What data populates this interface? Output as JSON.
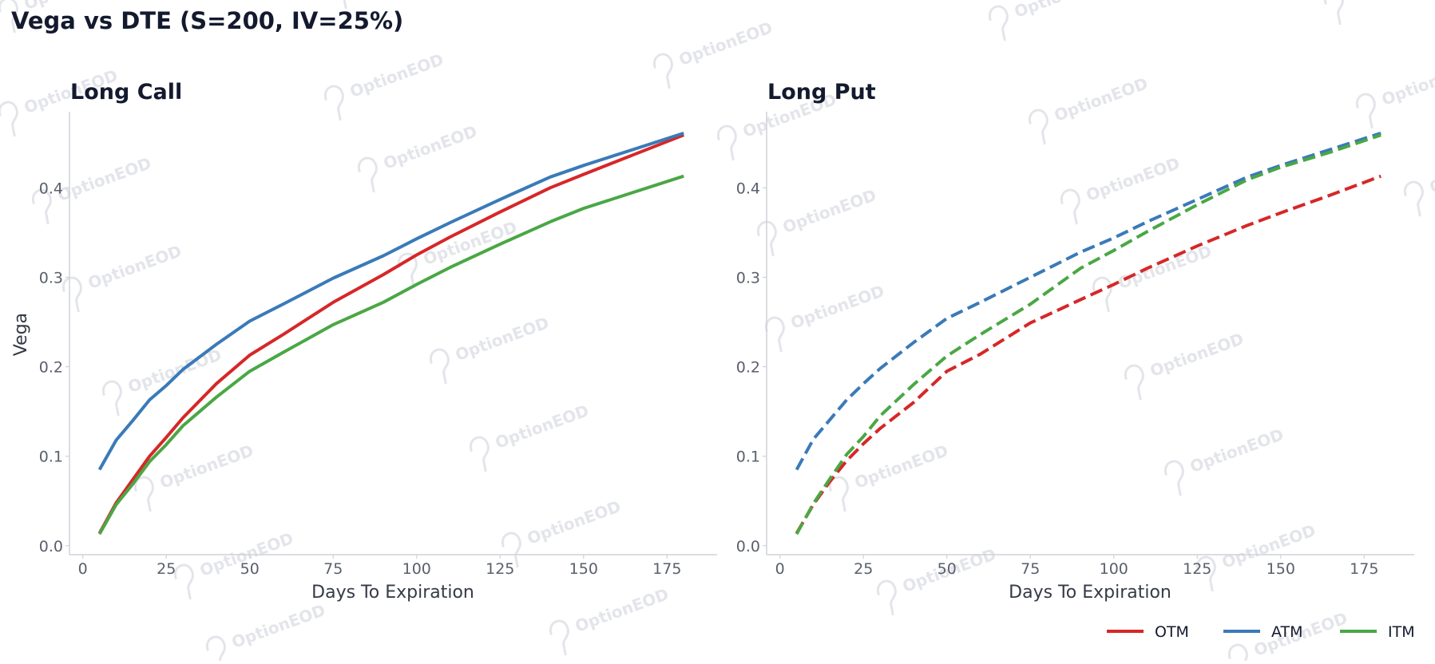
{
  "title": "Vega vs DTE (S=200, IV=25%)",
  "watermark": "OptionEOD",
  "colors": {
    "OTM": "#d62728",
    "ATM": "#3a7ab8",
    "ITM": "#4aa745"
  },
  "legend": [
    {
      "name": "OTM",
      "color": "#d62728"
    },
    {
      "name": "ATM",
      "color": "#3a7ab8"
    },
    {
      "name": "ITM",
      "color": "#4aa745"
    }
  ],
  "chart_data": [
    {
      "type": "line",
      "title": "Long Call",
      "xlabel": "Days To Expiration",
      "ylabel": "Vega",
      "xlim": [
        -4,
        190
      ],
      "ylim": [
        -0.01,
        0.485
      ],
      "xticks": [
        0,
        25,
        50,
        75,
        100,
        125,
        150,
        175
      ],
      "yticks": [
        0.0,
        0.1,
        0.2,
        0.3,
        0.4
      ],
      "ytick_labels": [
        "0.0",
        "0.1",
        "0.2",
        "0.3",
        "0.4"
      ],
      "line_style": "solid",
      "x": [
        5,
        10,
        15,
        20,
        25,
        30,
        40,
        50,
        60,
        75,
        90,
        100,
        110,
        125,
        140,
        150,
        165,
        180
      ],
      "series": [
        {
          "name": "OTM",
          "values": [
            0.014,
            0.048,
            0.074,
            0.1,
            0.121,
            0.143,
            0.181,
            0.213,
            0.236,
            0.272,
            0.303,
            0.325,
            0.345,
            0.373,
            0.4,
            0.415,
            0.437,
            0.459
          ]
        },
        {
          "name": "ATM",
          "values": [
            0.085,
            0.118,
            0.14,
            0.163,
            0.179,
            0.197,
            0.225,
            0.251,
            0.27,
            0.299,
            0.324,
            0.343,
            0.361,
            0.387,
            0.412,
            0.425,
            0.443,
            0.461
          ]
        },
        {
          "name": "ITM",
          "values": [
            0.013,
            0.046,
            0.069,
            0.094,
            0.113,
            0.134,
            0.166,
            0.195,
            0.216,
            0.247,
            0.272,
            0.292,
            0.311,
            0.337,
            0.362,
            0.377,
            0.395,
            0.413
          ]
        }
      ]
    },
    {
      "type": "line",
      "title": "Long Put",
      "xlabel": "Days To Expiration",
      "ylabel": "",
      "xlim": [
        -4,
        190
      ],
      "ylim": [
        -0.01,
        0.485
      ],
      "xticks": [
        0,
        25,
        50,
        75,
        100,
        125,
        150,
        175
      ],
      "yticks": [
        0.0,
        0.1,
        0.2,
        0.3,
        0.4
      ],
      "ytick_labels": [
        "0.0",
        "0.1",
        "0.2",
        "0.3",
        "0.4"
      ],
      "line_style": "dashed",
      "x": [
        5,
        10,
        15,
        20,
        25,
        30,
        40,
        50,
        60,
        75,
        90,
        100,
        110,
        125,
        140,
        150,
        165,
        180
      ],
      "series": [
        {
          "name": "OTM",
          "values": [
            0.014,
            0.046,
            0.072,
            0.095,
            0.114,
            0.131,
            0.16,
            0.195,
            0.214,
            0.249,
            0.275,
            0.292,
            0.31,
            0.335,
            0.358,
            0.372,
            0.392,
            0.413
          ]
        },
        {
          "name": "ATM",
          "values": [
            0.085,
            0.119,
            0.141,
            0.163,
            0.181,
            0.198,
            0.227,
            0.254,
            0.272,
            0.3,
            0.328,
            0.344,
            0.362,
            0.387,
            0.412,
            0.425,
            0.443,
            0.461
          ]
        },
        {
          "name": "ITM",
          "values": [
            0.013,
            0.047,
            0.075,
            0.102,
            0.122,
            0.145,
            0.18,
            0.212,
            0.236,
            0.27,
            0.31,
            0.33,
            0.351,
            0.381,
            0.409,
            0.423,
            0.44,
            0.459
          ]
        }
      ]
    }
  ]
}
